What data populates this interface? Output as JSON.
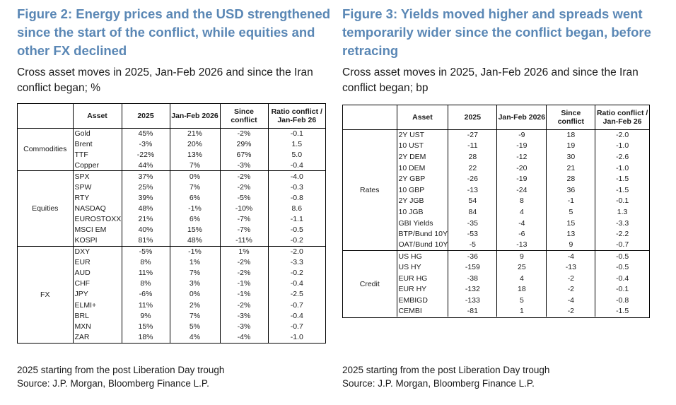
{
  "left": {
    "title": "Figure 2: Energy prices and the USD strengthened\nsince the start of the conflict, while equities and\nother FX declined",
    "subtitle": "Cross asset moves in 2025, Jan-Feb 2026 and since the Iran\nconflict began; %",
    "columns": [
      "",
      "Asset",
      "2025",
      "Jan-Feb 2026",
      "Since conflict",
      "Ratio conflict / Jan-Feb 26"
    ],
    "groups": [
      {
        "name": "Commodities",
        "rows": [
          [
            "Gold",
            "45%",
            "21%",
            "-2%",
            "-0.1"
          ],
          [
            "Brent",
            "-3%",
            "20%",
            "29%",
            "1.5"
          ],
          [
            "TTF",
            "-22%",
            "13%",
            "67%",
            "5.0"
          ],
          [
            "Copper",
            "44%",
            "7%",
            "-3%",
            "-0.4"
          ]
        ]
      },
      {
        "name": "Equities",
        "rows": [
          [
            "SPX",
            "37%",
            "0%",
            "-2%",
            "-4.0"
          ],
          [
            "SPW",
            "25%",
            "7%",
            "-2%",
            "-0.3"
          ],
          [
            "RTY",
            "39%",
            "6%",
            "-5%",
            "-0.8"
          ],
          [
            "NASDAQ",
            "48%",
            "-1%",
            "-10%",
            "8.6"
          ],
          [
            "EUROSTOXX",
            "21%",
            "6%",
            "-7%",
            "-1.1"
          ],
          [
            "MSCI EM",
            "40%",
            "15%",
            "-7%",
            "-0.5"
          ],
          [
            "KOSPI",
            "81%",
            "48%",
            "-11%",
            "-0.2"
          ]
        ]
      },
      {
        "name": "FX",
        "rows": [
          [
            "DXY",
            "-5%",
            "-1%",
            "1%",
            "-2.0"
          ],
          [
            "EUR",
            "8%",
            "1%",
            "-2%",
            "-3.3"
          ],
          [
            "AUD",
            "11%",
            "7%",
            "-2%",
            "-0.2"
          ],
          [
            "CHF",
            "8%",
            "3%",
            "-1%",
            "-0.4"
          ],
          [
            "JPY",
            "-6%",
            "0%",
            "-1%",
            "-2.5"
          ],
          [
            "ELMI+",
            "11%",
            "2%",
            "-2%",
            "-0.7"
          ],
          [
            "BRL",
            "9%",
            "7%",
            "-3%",
            "-0.4"
          ],
          [
            "MXN",
            "15%",
            "5%",
            "-3%",
            "-0.7"
          ],
          [
            "ZAR",
            "18%",
            "4%",
            "-4%",
            "-1.0"
          ]
        ]
      }
    ],
    "footnote_1": "2025 starting from the post Liberation Day trough",
    "footnote_2": "Source: J.P. Morgan, Bloomberg Finance L.P."
  },
  "right": {
    "title": "Figure 3: Yields moved higher and spreads went\ntemporarily wider since the conflict began, before\nretracing",
    "subtitle": "Cross asset moves in 2025, Jan-Feb 2026 and since the Iran\nconflict began; bp",
    "columns": [
      "",
      "Asset",
      "2025",
      "Jan-Feb 2026",
      "Since conflict",
      "Ratio conflict / Jan-Feb 26"
    ],
    "groups": [
      {
        "name": "Rates",
        "rows": [
          [
            "2Y UST",
            "-27",
            "-9",
            "18",
            "-2.0"
          ],
          [
            "10 UST",
            "-11",
            "-19",
            "19",
            "-1.0"
          ],
          [
            "2Y DEM",
            "28",
            "-12",
            "30",
            "-2.6"
          ],
          [
            "10 DEM",
            "22",
            "-20",
            "21",
            "-1.0"
          ],
          [
            "2Y GBP",
            "-26",
            "-19",
            "28",
            "-1.5"
          ],
          [
            "10 GBP",
            "-13",
            "-24",
            "36",
            "-1.5"
          ],
          [
            "2Y JGB",
            "54",
            "8",
            "-1",
            "-0.1"
          ],
          [
            "10 JGB",
            "84",
            "4",
            "5",
            "1.3"
          ],
          [
            "GBI Yields",
            "-35",
            "-4",
            "15",
            "-3.3"
          ],
          [
            "BTP/Bund 10Y",
            "-53",
            "-6",
            "13",
            "-2.2"
          ],
          [
            "OAT/Bund 10Y",
            "-5",
            "-13",
            "9",
            "-0.7"
          ]
        ]
      },
      {
        "name": "Credit",
        "rows": [
          [
            "US HG",
            "-36",
            "9",
            "-4",
            "-0.5"
          ],
          [
            "US HY",
            "-159",
            "25",
            "-13",
            "-0.5"
          ],
          [
            "EUR HG",
            "-38",
            "4",
            "-2",
            "-0.4"
          ],
          [
            "EUR HY",
            "-132",
            "18",
            "-2",
            "-0.1"
          ],
          [
            "EMBIGD",
            "-133",
            "5",
            "-4",
            "-0.8"
          ],
          [
            "CEMBI",
            "-81",
            "1",
            "-2",
            "-1.5"
          ]
        ]
      }
    ],
    "footnote_1": "2025 starting from the post Liberation Day trough",
    "footnote_2": "Source: J.P. Morgan, Bloomberg Finance L.P."
  }
}
